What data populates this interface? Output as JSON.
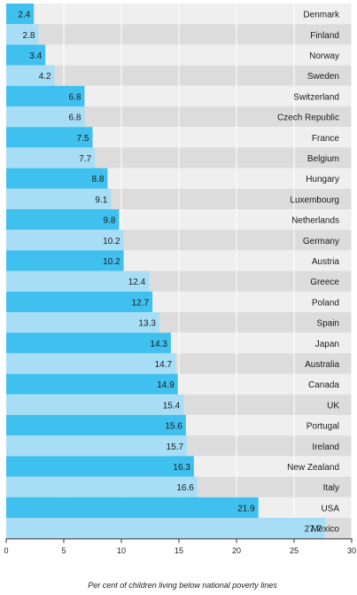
{
  "chart_data": {
    "type": "bar",
    "orientation": "horizontal",
    "categories": [
      "Denmark",
      "Finland",
      "Norway",
      "Sweden",
      "Switzerland",
      "Czech Republic",
      "France",
      "Belgium",
      "Hungary",
      "Luxembourg",
      "Netherlands",
      "Germany",
      "Austria",
      "Greece",
      "Poland",
      "Spain",
      "Japan",
      "Australia",
      "Canada",
      "UK",
      "Portugal",
      "Ireland",
      "New Zealand",
      "Italy",
      "USA",
      "Mexico"
    ],
    "values": [
      2.4,
      2.8,
      3.4,
      4.2,
      6.8,
      6.8,
      7.5,
      7.7,
      8.8,
      9.1,
      9.8,
      10.2,
      10.2,
      12.4,
      12.7,
      13.3,
      14.3,
      14.7,
      14.9,
      15.4,
      15.6,
      15.7,
      16.3,
      16.6,
      21.9,
      27.7
    ],
    "value_labels": [
      "2.4",
      "2.8",
      "3.4",
      "4.2",
      "6.8",
      "6.8",
      "7.5",
      "7.7",
      "8.8",
      "9.1",
      "9.8",
      "10.2",
      "10.2",
      "12.4",
      "12.7",
      "13.3",
      "14.3",
      "14.7",
      "14.9",
      "15.4",
      "15.6",
      "15.7",
      "16.3",
      "16.6",
      "21.9",
      "27.7"
    ],
    "xlim": [
      0,
      30
    ],
    "xticks": [
      0,
      5,
      10,
      15,
      20,
      25,
      30
    ],
    "xtick_labels": [
      "0",
      "5",
      "10",
      "15",
      "20",
      "25",
      "30"
    ],
    "xlabel": "Per cent of children living below national poverty lines",
    "ylabel": "",
    "grid": true,
    "colors": {
      "bar_dark": "#40c0ef",
      "bar_light": "#a7def6",
      "row_light": "#efefef",
      "row_dark": "#dcdcdc",
      "gridline": "#ffffff",
      "axis": "#333333"
    }
  }
}
